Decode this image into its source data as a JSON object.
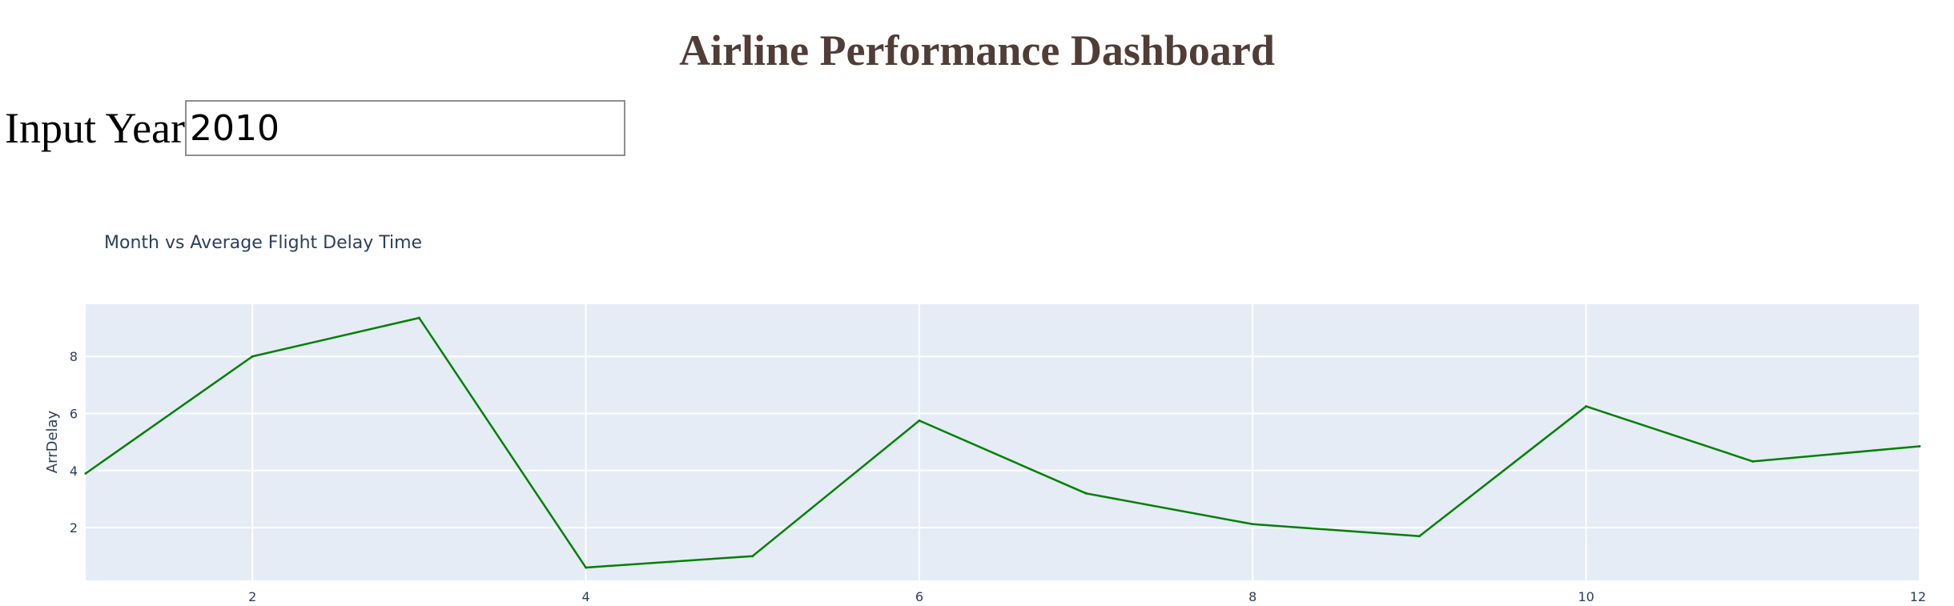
{
  "header": {
    "title": "Airline Performance Dashboard",
    "title_color": "#503D36"
  },
  "year_input": {
    "label": "Input Year",
    "value": "2010"
  },
  "chart_data": {
    "type": "line",
    "title": "Month vs Average Flight Delay Time",
    "xlabel": "",
    "ylabel": "ArrDelay",
    "x": [
      1,
      2,
      3,
      4,
      5,
      6,
      7,
      8,
      9,
      10,
      11,
      12
    ],
    "series": [
      {
        "values": [
          3.9,
          8.0,
          9.35,
          0.6,
          1.0,
          5.75,
          3.2,
          2.12,
          1.7,
          6.25,
          4.32,
          4.85
        ],
        "color": "#008000"
      }
    ],
    "xlim": [
      1,
      12
    ],
    "ylim": [
      0.15,
      9.83
    ],
    "x_ticks": [
      "2",
      "4",
      "6",
      "8",
      "10",
      "12"
    ],
    "y_ticks": [
      "2",
      "4",
      "6",
      "8"
    ],
    "plot_background": "#E5ECF6",
    "grid": true,
    "legend": "none"
  }
}
